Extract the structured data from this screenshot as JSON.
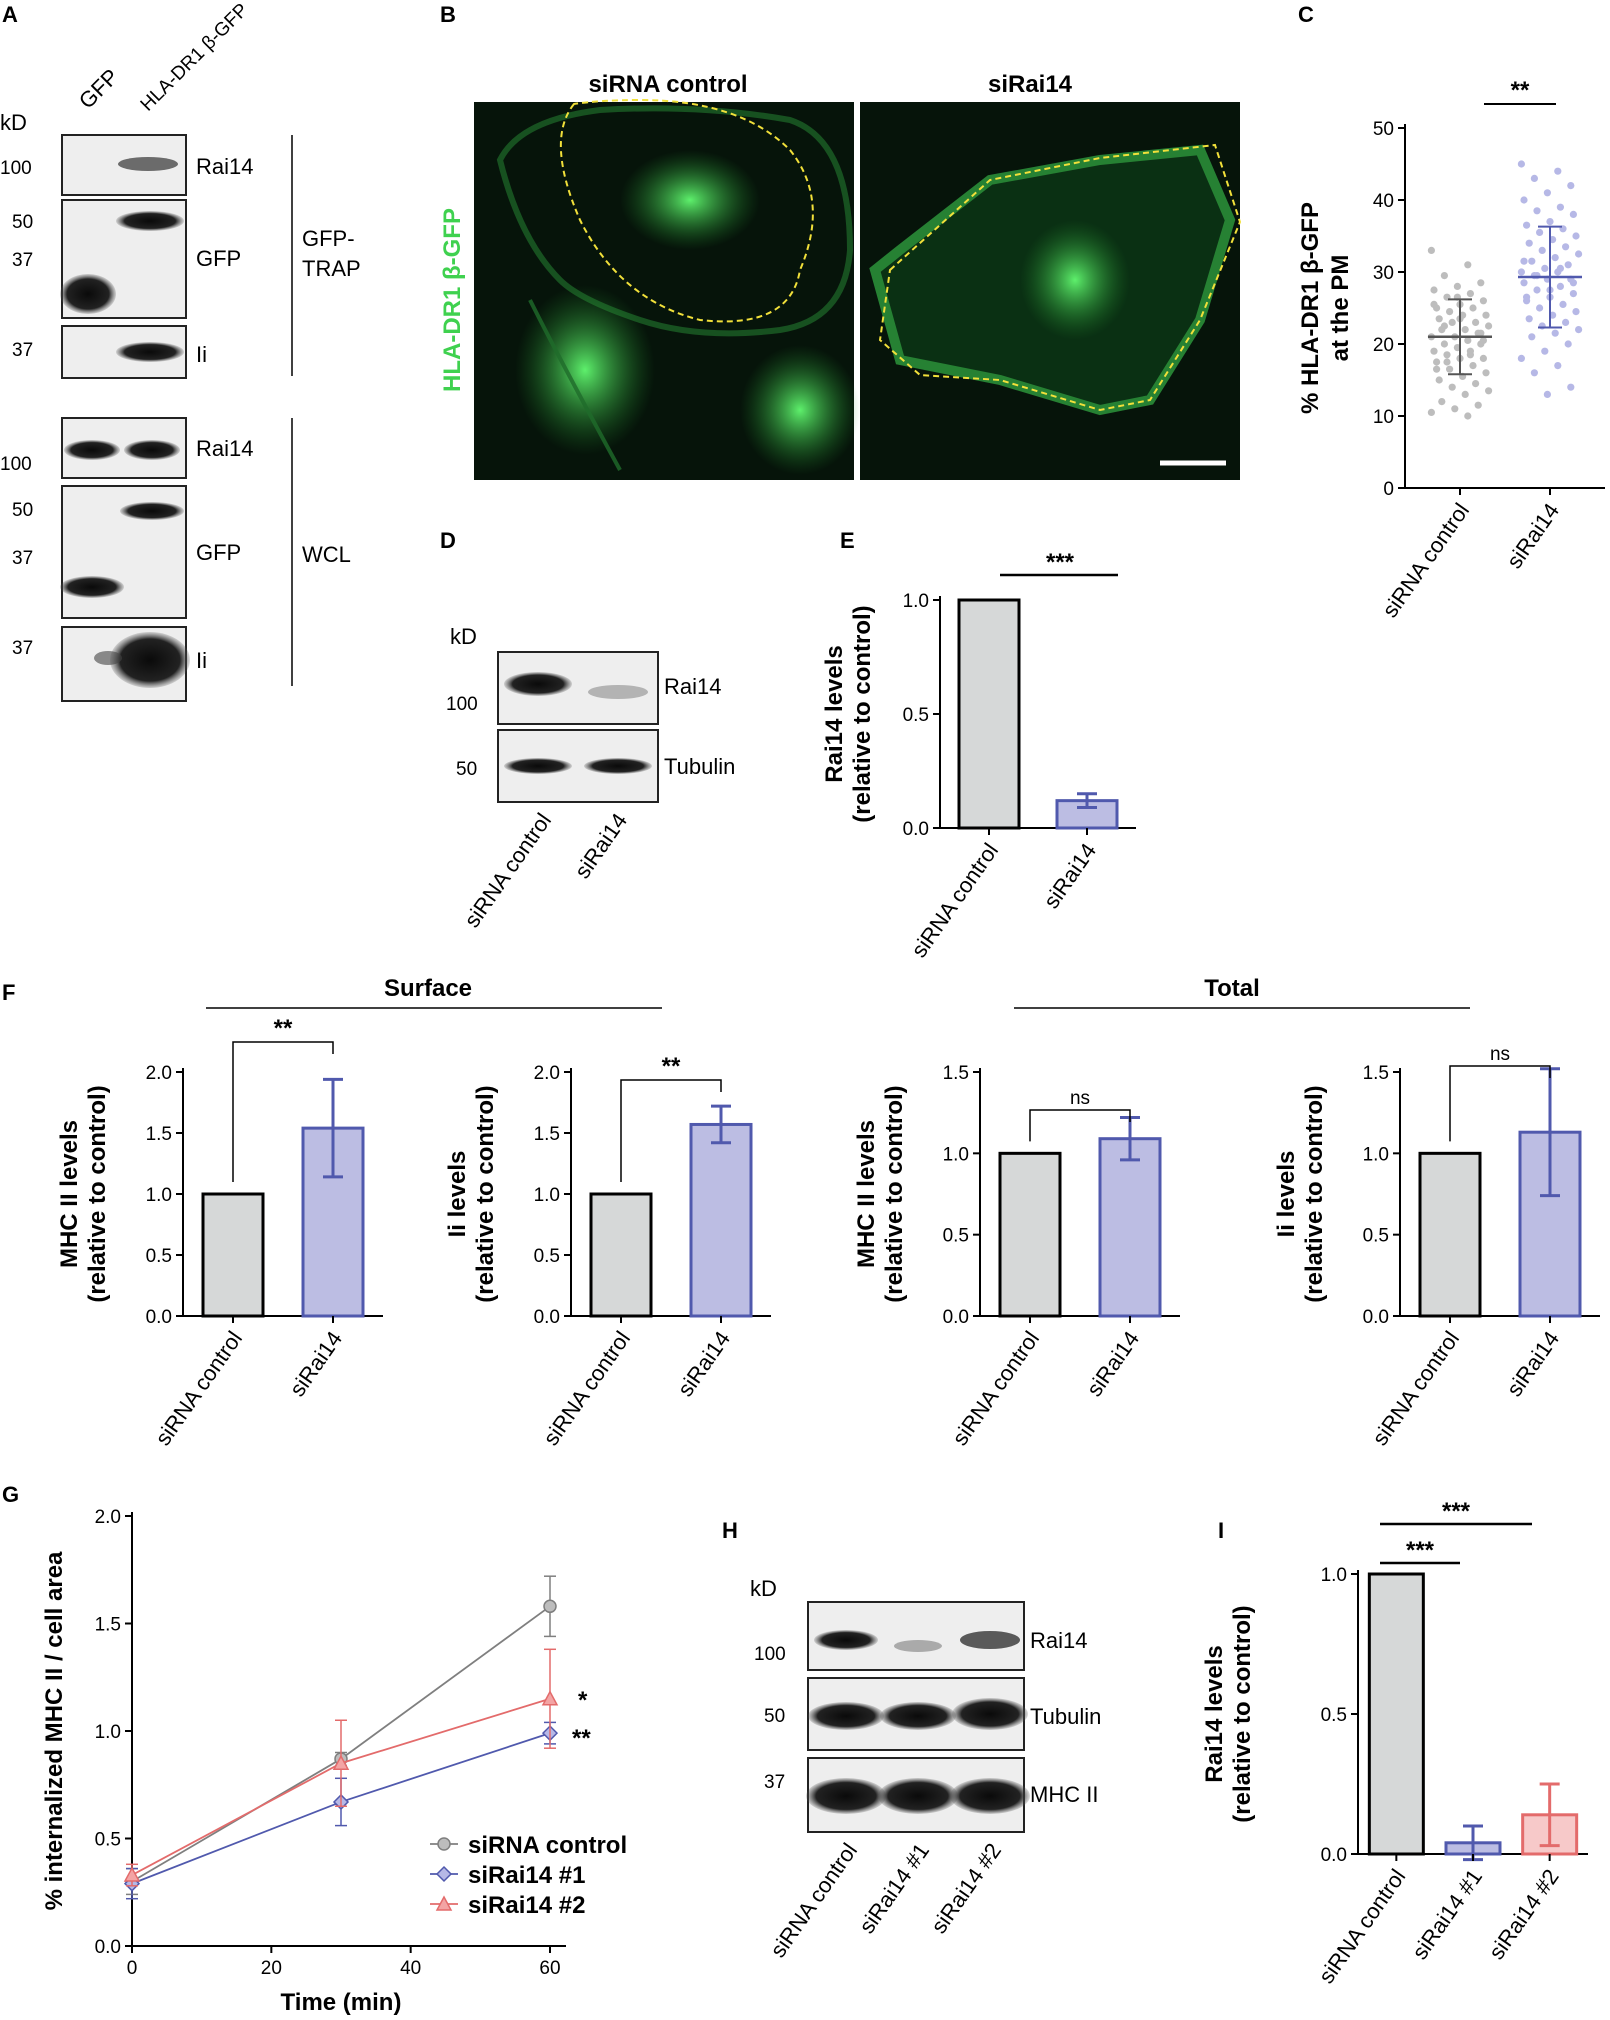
{
  "panels": [
    "A",
    "B",
    "C",
    "D",
    "E",
    "F",
    "G",
    "H",
    "I"
  ],
  "colors": {
    "control": "#d6d8d8",
    "knockdown": "#bcbde3",
    "knockdown_line": "#5059ad",
    "sirna2": "#f7c9c9",
    "sirna2_line": "#e36b6b",
    "control_line": "#7f7f7f",
    "gfp_green": "#3fd14f"
  },
  "panelA": {
    "lanes": [
      "GFP",
      "HLA-DR1 β-GFP"
    ],
    "kd": "kD",
    "trap_markers": [
      "100",
      "50",
      "37",
      "37"
    ],
    "wcl_markers": [
      "100",
      "50",
      "37",
      "37"
    ],
    "trap_bands": [
      "Rai14",
      "GFP",
      "Ii"
    ],
    "wcl_bands": [
      "Rai14",
      "GFP",
      "Ii"
    ],
    "trap_group": [
      "GFP-",
      "TRAP"
    ],
    "wcl_group": "WCL"
  },
  "panelB": {
    "left_title": "siRNA control",
    "right_title": "siRai14",
    "ylabel": "HLA-DR1 β-GFP"
  },
  "chart_data": [
    {
      "panel": "C",
      "type": "scatter",
      "categories": [
        "siRNA control",
        "siRai14"
      ],
      "ylabel": [
        "% HLA-DR1 β-GFP",
        "at the PM"
      ],
      "ylim": [
        0,
        50
      ],
      "yticks": [
        "0",
        "10",
        "20",
        "30",
        "40",
        "50"
      ],
      "means": [
        21,
        29.3
      ],
      "sd": [
        5.2,
        7.0
      ],
      "series": [
        {
          "values": [
            33,
            31,
            29.5,
            28.5,
            28,
            27.5,
            27,
            26.5,
            26,
            25.5,
            25,
            25,
            24.5,
            24,
            24,
            23.5,
            23,
            23,
            22.5,
            22,
            22,
            21.5,
            21,
            21,
            20.5,
            20,
            20,
            19.5,
            19,
            19,
            18.5,
            18,
            18,
            17.5,
            17,
            16.5,
            16,
            15.5,
            15,
            14.5,
            14,
            13.5,
            13,
            12,
            11.5,
            11,
            10.5,
            10,
            22.5,
            21.5,
            26.5,
            25.5,
            18.5,
            17.5,
            20.5,
            23.5,
            16.5
          ]
        },
        {
          "values": [
            45,
            44,
            43,
            42,
            41,
            40,
            39,
            38.5,
            38,
            37,
            36.5,
            36,
            35.5,
            35,
            34.5,
            34,
            33.5,
            33,
            32.5,
            32,
            31.5,
            31,
            30.5,
            30,
            30,
            29.5,
            29,
            29,
            28.5,
            28,
            27.5,
            27,
            26.5,
            26,
            25.5,
            25,
            24.5,
            24,
            23.5,
            23,
            22.5,
            22,
            21.5,
            21,
            20,
            19,
            18,
            17,
            16,
            14,
            13,
            31.5,
            30.5,
            29.5,
            28.5,
            27.5,
            26.5
          ]
        }
      ],
      "significance": "**"
    },
    {
      "panel": "E",
      "type": "bar",
      "categories": [
        "siRNA control",
        "siRai14"
      ],
      "values": [
        1.0,
        0.12
      ],
      "errors": [
        0,
        0.03
      ],
      "ylabel": [
        "Rai14 levels",
        "(relative to control)"
      ],
      "ylim": [
        0,
        1.0
      ],
      "yticks": [
        "0.0",
        "0.5",
        "1.0"
      ],
      "significance": "***"
    },
    {
      "panel": "F1",
      "group": "Surface",
      "type": "bar",
      "categories": [
        "siRNA control",
        "siRai14"
      ],
      "values": [
        1.0,
        1.54
      ],
      "errors": [
        0,
        0.4
      ],
      "ylabel": [
        "MHC II levels",
        "(relative to control)"
      ],
      "ylim": [
        0,
        2.0
      ],
      "yticks": [
        "0.0",
        "0.5",
        "1.0",
        "1.5",
        "2.0"
      ],
      "significance": "**"
    },
    {
      "panel": "F2",
      "group": "Surface",
      "type": "bar",
      "categories": [
        "siRNA control",
        "siRai14"
      ],
      "values": [
        1.0,
        1.57
      ],
      "errors": [
        0,
        0.15
      ],
      "ylabel": [
        "Ii levels",
        "(relative to control)"
      ],
      "ylim": [
        0,
        2.0
      ],
      "yticks": [
        "0.0",
        "0.5",
        "1.0",
        "1.5",
        "2.0"
      ],
      "significance": "**"
    },
    {
      "panel": "F3",
      "group": "Total",
      "type": "bar",
      "categories": [
        "siRNA control",
        "siRai14"
      ],
      "values": [
        1.0,
        1.09
      ],
      "errors": [
        0,
        0.13
      ],
      "ylabel": [
        "MHC II levels",
        "(relative to control)"
      ],
      "ylim": [
        0,
        1.5
      ],
      "yticks": [
        "0.0",
        "0.5",
        "1.0",
        "1.5"
      ],
      "significance": "ns"
    },
    {
      "panel": "F4",
      "group": "Total",
      "type": "bar",
      "categories": [
        "siRNA control",
        "siRai14"
      ],
      "values": [
        1.0,
        1.13
      ],
      "errors": [
        0,
        0.39
      ],
      "ylabel": [
        "Ii levels",
        "(relative to control)"
      ],
      "ylim": [
        0,
        1.5
      ],
      "yticks": [
        "0.0",
        "0.5",
        "1.0",
        "1.5"
      ],
      "significance": "ns"
    },
    {
      "panel": "G",
      "type": "line",
      "x": [
        0,
        30,
        60
      ],
      "xlabel": "Time (min)",
      "ylabel": "% internalized MHC II / cell area",
      "xlim": [
        0,
        60
      ],
      "ylim": [
        0,
        2.0
      ],
      "xticks": [
        "0",
        "20",
        "40",
        "60"
      ],
      "yticks": [
        "0.0",
        "0.5",
        "1.0",
        "1.5",
        "2.0"
      ],
      "series": [
        {
          "name": "siRNA control",
          "values": [
            0.3,
            0.87,
            1.58
          ],
          "errors": [
            0.06,
            0.03,
            0.14
          ]
        },
        {
          "name": "siRai14 #1",
          "values": [
            0.29,
            0.67,
            0.99
          ],
          "errors": [
            0.07,
            0.11,
            0.05
          ]
        },
        {
          "name": "siRai14 #2",
          "values": [
            0.33,
            0.85,
            1.15
          ],
          "errors": [
            0.05,
            0.2,
            0.23
          ]
        }
      ],
      "annotations": [
        "*",
        "**"
      ]
    },
    {
      "panel": "I",
      "type": "bar",
      "categories": [
        "siRNA control",
        "siRai14 #1",
        "siRai14 #2"
      ],
      "values": [
        1.0,
        0.04,
        0.14
      ],
      "errors": [
        0,
        0.06,
        0.11
      ],
      "ylabel": [
        "Rai14 levels",
        "(relative to control)"
      ],
      "ylim": [
        0,
        1.0
      ],
      "yticks": [
        "0.0",
        "0.5",
        "1.0"
      ],
      "significance": [
        "***",
        "***"
      ]
    }
  ],
  "panelD": {
    "kd": "kD",
    "markers": [
      "100",
      "50"
    ],
    "bands": [
      "Rai14",
      "Tubulin"
    ],
    "lanes": [
      "siRNA control",
      "siRai14"
    ]
  },
  "panelF": {
    "surface": "Surface",
    "total": "Total"
  },
  "panelH": {
    "kd": "kD",
    "markers": [
      "100",
      "50",
      "37"
    ],
    "bands": [
      "Rai14",
      "Tubulin",
      "MHC II"
    ],
    "lanes": [
      "siRNA control",
      "siRai14 #1",
      "siRai14 #2"
    ]
  }
}
